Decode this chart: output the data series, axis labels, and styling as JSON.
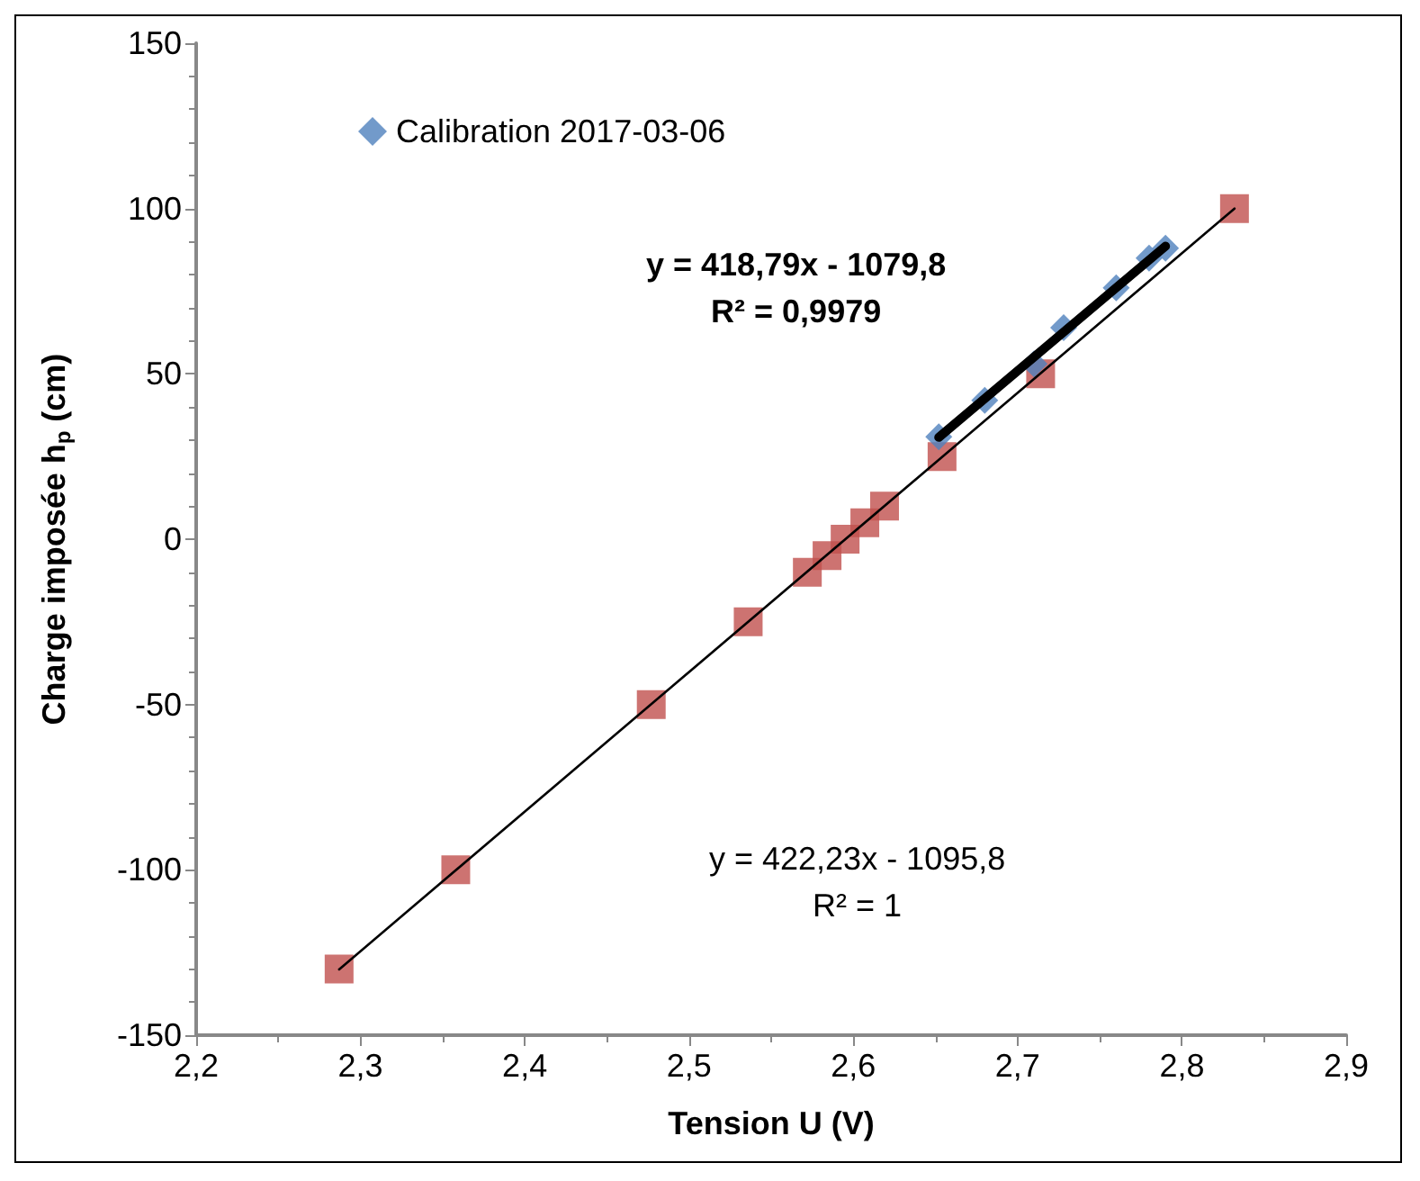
{
  "chart_data": {
    "type": "scatter",
    "xlabel": "Tension U (V)",
    "ylabel": "Charge imposée h$_{p}$ (cm)",
    "xlim": [
      2.2,
      2.9
    ],
    "xticks": [
      {
        "value": 2.2,
        "label": "2,2"
      },
      {
        "value": 2.3,
        "label": "2,3"
      },
      {
        "value": 2.4,
        "label": "2,4"
      },
      {
        "value": 2.5,
        "label": "2,5"
      },
      {
        "value": 2.6,
        "label": "2,6"
      },
      {
        "value": 2.7,
        "label": "2,7"
      },
      {
        "value": 2.8,
        "label": "2,8"
      },
      {
        "value": 2.9,
        "label": "2,9"
      }
    ],
    "ylim": [
      -150,
      150
    ],
    "yticks": [
      -150,
      -100,
      -50,
      0,
      50,
      100,
      150
    ],
    "grid": false,
    "legend": "top left",
    "series": [
      {
        "color": "#c0504d",
        "marker": "square",
        "x": [
          2.287,
          2.358,
          2.477,
          2.536,
          2.572,
          2.584,
          2.595,
          2.607,
          2.619,
          2.654,
          2.714,
          2.832
        ],
        "values": [
          -130,
          -100,
          -50,
          -25,
          -10,
          -5,
          0,
          5,
          10,
          25,
          50,
          100
        ]
      },
      {
        "name": "Calibration 2017-03-06",
        "color": "#4f81bd",
        "marker": "diamond",
        "x": [
          2.652,
          2.68,
          2.71,
          2.728,
          2.76,
          2.78,
          2.79
        ],
        "values": [
          31,
          42,
          53,
          64,
          76,
          85,
          88
        ]
      },
      {
        "type": "line",
        "color": "#000000",
        "marker": "none",
        "x": [
          2.287,
          2.832
        ],
        "values": [
          -130.1,
          100
        ]
      },
      {
        "type": "line",
        "color": "#000000",
        "marker": "none",
        "x": [
          2.652,
          2.79
        ],
        "values": [
          30.8,
          88.6
        ]
      }
    ],
    "annotations": [
      "y = 418,79x - 1079,8\nR² = 0,9979",
      "y = 422,23x - 1095,8\nR² = 1"
    ]
  }
}
